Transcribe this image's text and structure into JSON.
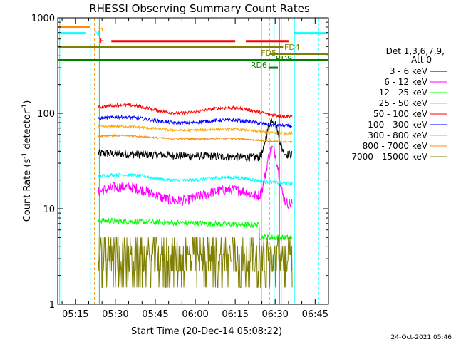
{
  "chart_data": {
    "type": "line",
    "title": "RHESSI Observing Summary Count Rates",
    "xlabel": "Start Time (20-Dec-14 05:08:22)",
    "ylabel_main": "Count Rate (s",
    "ylabel_sup1": "-1",
    "ylabel_mid": " detector",
    "ylabel_sup2": "-1",
    "ylabel_end": ")",
    "y_scale": "log",
    "ylim": [
      1,
      1000
    ],
    "xlim_minutes": [
      5.13,
      6.83
    ],
    "x_ticks": [
      {
        "label": "05:15",
        "min": 315
      },
      {
        "label": "05:30",
        "min": 330
      },
      {
        "label": "05:45",
        "min": 345
      },
      {
        "label": "06:00",
        "min": 360
      },
      {
        "label": "06:15",
        "min": 375
      },
      {
        "label": "06:30",
        "min": 390
      },
      {
        "label": "06:45",
        "min": 405
      }
    ],
    "y_ticks": [
      {
        "label": "1",
        "value": 1
      },
      {
        "label": "10",
        "value": 10
      },
      {
        "label": "100",
        "value": 100
      },
      {
        "label": "1000",
        "value": 1000
      }
    ],
    "legend_header": [
      "Det 1,3,6,7,9,",
      "Att 0"
    ],
    "series": [
      {
        "name": "3 - 6 keV",
        "color": "#000000",
        "base": 38,
        "noise": 0.1,
        "bump": 0.0,
        "flare": 1.3
      },
      {
        "name": "6 - 12 keV",
        "color": "#ff00ff",
        "base": 15,
        "noise": 0.13,
        "bump": 0.15,
        "flare": 2.6
      },
      {
        "name": "12 - 25 keV",
        "color": "#00ff00",
        "base": 7.5,
        "noise": 0.07,
        "bump": 0.0,
        "flare": 0.0
      },
      {
        "name": "25 - 50 keV",
        "color": "#00ffff",
        "base": 22,
        "noise": 0.04,
        "bump": 0.05,
        "flare": 0.0
      },
      {
        "name": "50 - 100 keV",
        "color": "#ff0000",
        "base": 115,
        "noise": 0.04,
        "bump": 0.08,
        "flare": 0.0
      },
      {
        "name": "100 - 300 keV",
        "color": "#0000ff",
        "base": 88,
        "noise": 0.04,
        "bump": 0.05,
        "flare": 0.0
      },
      {
        "name": "300 - 800 keV",
        "color": "#ffa500",
        "base": 72,
        "noise": 0.03,
        "bump": 0.03,
        "flare": 0.0
      },
      {
        "name": "800 - 7000 keV",
        "color": "#ff8c00",
        "base": 58,
        "noise": 0.02,
        "bump": 0.02,
        "flare": 0.0
      },
      {
        "name": "7000 - 15000 keV",
        "color": "#808000",
        "base": 2.8,
        "noise": 0.35,
        "bump": 0.0,
        "flare": 0.0
      }
    ],
    "data_start_min": 323.5,
    "data_end_min": 396.5,
    "flare_peak_min": 389,
    "flags": {
      "S": {
        "label": "S",
        "color": "#ff8c00",
        "y": 800
      },
      "N": {
        "label": "N",
        "color": "#00ffff",
        "y": 690
      },
      "F": {
        "label": "F",
        "color": "#ff0000",
        "y": 570
      },
      "FD4": {
        "label": "FD4",
        "color": "#808000",
        "y": 490
      },
      "FD5": {
        "label": "FD5",
        "color": "#808000",
        "y": 420
      },
      "RD9": {
        "label": "RD9",
        "color": "#008000",
        "y": 360
      },
      "RD6": {
        "label": "RD6",
        "color": "#008000",
        "y": 300
      }
    },
    "footer": "24-Oct-2021 05:46",
    "grid": false
  }
}
